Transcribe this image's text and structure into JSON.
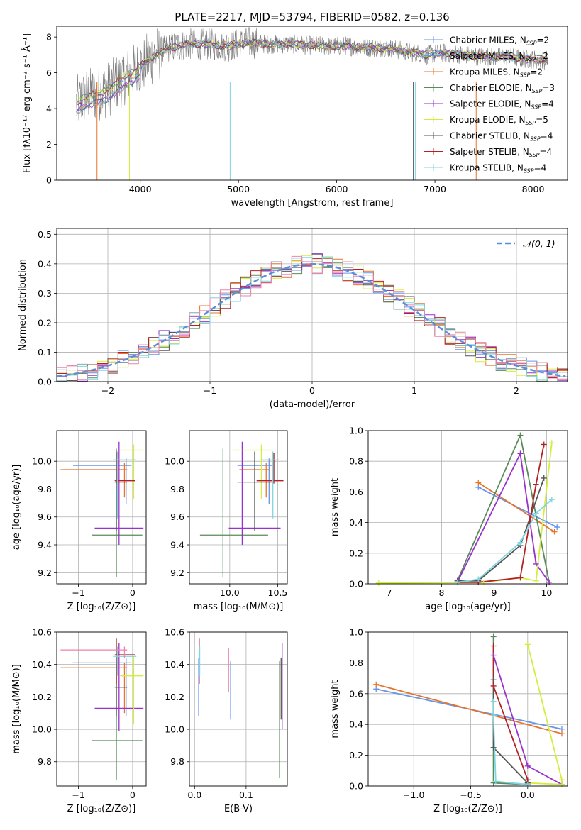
{
  "figure": {
    "title": "PLATE=2217, MJD=53794, FIBERID=0582, z=0.136",
    "colors": {
      "Chabrier MILES": "#6495ed",
      "Salpeter MILES": "#6495ed",
      "Kroupa MILES": "#e8742b",
      "Chabrier ELODIE": "#5a8a5a",
      "Salpeter ELODIE": "#9932cc",
      "Kroupa ELODIE": "#d4ed3c",
      "Chabrier STELIB": "#555555",
      "Salpeter STELIB": "#b22222",
      "Kroupa STELIB": "#7fd6e0",
      "Pink": "#ee82ab"
    }
  },
  "chart_data": [
    {
      "id": "spectrum",
      "type": "line",
      "xlabel": "wavelength [Angstrom, rest frame]",
      "ylabel": "Flux [fλ10⁻¹⁷ erg cm⁻² s⁻¹ Å⁻¹]",
      "xlim": [
        3150,
        8350
      ],
      "ylim": [
        0,
        8.6
      ],
      "xticks": [
        4000,
        5000,
        6000,
        7000,
        8000
      ],
      "yticks": [
        0,
        2,
        4,
        6,
        8
      ],
      "grid": false,
      "legend_position": "top-right",
      "legend": [
        {
          "label": "Chabrier MILES, N",
          "sub": "SSP",
          "val": "=2",
          "color": "#6495ed"
        },
        {
          "label": "Salpeter MILES, N",
          "sub": "SSP",
          "val": "=2",
          "color": "#6495ed"
        },
        {
          "label": "Kroupa MILES, N",
          "sub": "SSP",
          "val": "=2",
          "color": "#e8742b"
        },
        {
          "label": "Chabrier ELODIE, N",
          "sub": "SSP",
          "val": "=3",
          "color": "#5a8a5a"
        },
        {
          "label": "Salpeter ELODIE, N",
          "sub": "SSP",
          "val": "=4",
          "color": "#9932cc"
        },
        {
          "label": "Kroupa ELODIE, N",
          "sub": "SSP",
          "val": "=5",
          "color": "#d4ed3c"
        },
        {
          "label": "Chabrier STELIB, N",
          "sub": "SSP",
          "val": "=4",
          "color": "#555555"
        },
        {
          "label": "Salpeter STELIB, N",
          "sub": "SSP",
          "val": "=4",
          "color": "#b22222"
        },
        {
          "label": "Kroupa STELIB, N",
          "sub": "SSP",
          "val": "=4",
          "color": "#7fd6e0"
        }
      ],
      "continuum": {
        "x": [
          3350,
          3450,
          3550,
          3650,
          3750,
          3850,
          3950,
          4050,
          4150,
          4300,
          4500,
          4700,
          4900,
          5100,
          5300,
          5500,
          5700,
          5900,
          6100,
          6300,
          6500,
          6700,
          6900,
          7100,
          7300,
          7500,
          7700,
          7900,
          8100
        ],
        "y": [
          4.3,
          4.7,
          4.8,
          5.0,
          5.4,
          5.8,
          6.1,
          6.6,
          7.0,
          7.4,
          7.6,
          7.6,
          7.5,
          7.7,
          7.6,
          7.6,
          7.55,
          7.5,
          7.5,
          7.4,
          7.4,
          7.2,
          7.0,
          7.1,
          7.0,
          6.9,
          6.9,
          6.8,
          6.7
        ]
      }
    },
    {
      "id": "residuals",
      "type": "bar",
      "xlabel": "(data-model)/error",
      "ylabel": "Normed distribution",
      "xlim": [
        -2.5,
        2.5
      ],
      "ylim": [
        0,
        0.52
      ],
      "xticks": [
        -2,
        -1,
        0,
        1,
        2
      ],
      "xticklabels": [
        "−2",
        "−1",
        "0",
        "1",
        "2"
      ],
      "yticks": [
        0.0,
        0.1,
        0.2,
        0.3,
        0.4,
        0.5
      ],
      "yticklabels": [
        "0.0",
        "0.1",
        "0.2",
        "0.3",
        "0.4",
        "0.5"
      ],
      "grid": true,
      "legend_position": "top-right",
      "legend": [
        {
          "label": "𝒩(0, 1)",
          "color": "#5a8fd8",
          "style": "dashed"
        }
      ],
      "gaussian": {
        "mu": 0,
        "sigma": 1,
        "name": "𝒩(0, 1)"
      }
    },
    {
      "id": "age_Z",
      "type": "scatter",
      "xlabel": "Z [log₁₀(Z/Z⊙)]",
      "ylabel": "age  [log₁₀(age/yr)]",
      "xlim": [
        -1.4,
        0.25
      ],
      "ylim": [
        9.12,
        10.22
      ],
      "xticks": [
        -1,
        0
      ],
      "xticklabels": [
        "−1",
        "0"
      ],
      "yticks": [
        9.2,
        9.4,
        9.6,
        9.8,
        10.0
      ],
      "yticklabels": [
        "9.2",
        "9.4",
        "9.6",
        "9.8",
        "10.0"
      ],
      "grid": true,
      "points": [
        {
          "x": -0.12,
          "xerr": [
            0.98,
            0.1
          ],
          "y": 9.97,
          "yerr": [
            0.28,
            0.05
          ],
          "color": "#6495ed"
        },
        {
          "x": -0.15,
          "xerr": [
            1.18,
            0.05
          ],
          "y": 9.94,
          "yerr": [
            0.2,
            0.05
          ],
          "color": "#e8742b"
        },
        {
          "x": -0.3,
          "xerr": [
            0.45,
            0.48
          ],
          "y": 9.47,
          "yerr": [
            0.3,
            0.62
          ],
          "color": "#5a8a5a"
        },
        {
          "x": -0.25,
          "xerr": [
            0.45,
            0.45
          ],
          "y": 9.52,
          "yerr": [
            0.12,
            0.62
          ],
          "color": "#9932cc"
        },
        {
          "x": 0.02,
          "xerr": [
            0.25,
            0.18
          ],
          "y": 10.08,
          "yerr": [
            0.35,
            0.04
          ],
          "color": "#d4ed3c"
        },
        {
          "x": -0.3,
          "xerr": [
            0.03,
            0.2
          ],
          "y": 9.85,
          "yerr": [
            0.35,
            0.22
          ],
          "color": "#555555"
        },
        {
          "x": -0.3,
          "xerr": [
            0.03,
            0.35
          ],
          "y": 9.86,
          "yerr": [
            0.02,
            0.2
          ],
          "color": "#b22222"
        },
        {
          "x": -0.28,
          "xerr": [
            0.08,
            0.35
          ],
          "y": 10.01,
          "yerr": [
            0.42,
            0.06
          ],
          "color": "#7fd6e0"
        }
      ]
    },
    {
      "id": "age_mass",
      "type": "scatter",
      "xlabel": "mass [log₁₀(M/M⊙)]",
      "xlim": [
        9.58,
        10.6
      ],
      "ylim": [
        9.12,
        10.22
      ],
      "xticks": [
        10.0,
        10.5
      ],
      "xticklabels": [
        "10.0",
        "10.5"
      ],
      "yticks": [
        9.2,
        9.4,
        9.6,
        9.8,
        10.0
      ],
      "yticklabels": [
        "9.2",
        "9.4",
        "9.6",
        "9.8",
        "10.0"
      ],
      "grid": true,
      "points": [
        {
          "x": 10.41,
          "xerr": [
            0.33,
            0.03
          ],
          "y": 9.97,
          "yerr": [
            0.28,
            0.05
          ],
          "color": "#6495ed"
        },
        {
          "x": 10.38,
          "xerr": [
            0.28,
            0.03
          ],
          "y": 9.94,
          "yerr": [
            0.2,
            0.05
          ],
          "color": "#e8742b"
        },
        {
          "x": 9.93,
          "xerr": [
            0.24,
            0.47
          ],
          "y": 9.47,
          "yerr": [
            0.3,
            0.62
          ],
          "color": "#5a8a5a"
        },
        {
          "x": 10.13,
          "xerr": [
            0.14,
            0.4
          ],
          "y": 9.52,
          "yerr": [
            0.12,
            0.62
          ],
          "color": "#9932cc"
        },
        {
          "x": 10.33,
          "xerr": [
            0.3,
            0.12
          ],
          "y": 10.08,
          "yerr": [
            0.35,
            0.04
          ],
          "color": "#d4ed3c"
        },
        {
          "x": 10.26,
          "xerr": [
            0.18,
            0.18
          ],
          "y": 9.85,
          "yerr": [
            0.35,
            0.22
          ],
          "color": "#555555"
        },
        {
          "x": 10.46,
          "xerr": [
            0.18,
            0.1
          ],
          "y": 9.86,
          "yerr": [
            0.02,
            0.2
          ],
          "color": "#b22222"
        },
        {
          "x": 10.45,
          "xerr": [
            0.12,
            0.06
          ],
          "y": 10.01,
          "yerr": [
            0.42,
            0.06
          ],
          "color": "#7fd6e0"
        }
      ]
    },
    {
      "id": "mw_age",
      "type": "line",
      "xlabel": "age  [log₁₀(age/yr)]",
      "ylabel": "mass weight",
      "xlim": [
        6.6,
        10.4
      ],
      "ylim": [
        0,
        1
      ],
      "xticks": [
        7,
        8,
        9,
        10
      ],
      "yticks": [
        0,
        0.2,
        0.4,
        0.6,
        0.8,
        1.0
      ],
      "yticklabels": [
        "0.0",
        "0.2",
        "0.4",
        "0.6",
        "0.8",
        "1.0"
      ],
      "grid": true,
      "series": [
        {
          "color": "#6495ed",
          "x": [
            8.7,
            10.2
          ],
          "y": [
            0.63,
            0.37
          ]
        },
        {
          "color": "#e8742b",
          "x": [
            8.7,
            10.15
          ],
          "y": [
            0.66,
            0.34
          ]
        },
        {
          "color": "#5a8a5a",
          "x": [
            8.3,
            9.5,
            10.05
          ],
          "y": [
            0.02,
            0.97,
            0.01
          ]
        },
        {
          "color": "#9932cc",
          "x": [
            8.3,
            9.5,
            9.8,
            10.05
          ],
          "y": [
            0.01,
            0.85,
            0.13,
            0.01
          ]
        },
        {
          "color": "#d4ed3c",
          "x": [
            6.8,
            8.8,
            9.5,
            9.8,
            10.1
          ],
          "y": [
            0.005,
            0.01,
            0.04,
            0.02,
            0.92
          ]
        },
        {
          "color": "#555555",
          "x": [
            8.3,
            8.7,
            9.5,
            9.95
          ],
          "y": [
            0.02,
            0.02,
            0.25,
            0.69
          ]
        },
        {
          "color": "#b22222",
          "x": [
            8.3,
            8.7,
            9.5,
            9.8,
            9.95
          ],
          "y": [
            0.01,
            0.01,
            0.04,
            0.65,
            0.91
          ]
        },
        {
          "color": "#7fd6e0",
          "x": [
            8.3,
            8.7,
            9.5,
            9.8,
            10.1
          ],
          "y": [
            0.01,
            0.03,
            0.27,
            0.46,
            0.55
          ]
        }
      ]
    },
    {
      "id": "mass_Z",
      "type": "scatter",
      "xlabel": "Z [log₁₀(Z/Z⊙)]",
      "ylabel": "mass [log₁₀(M/M⊙)]",
      "xlim": [
        -1.4,
        0.25
      ],
      "ylim": [
        9.65,
        10.6
      ],
      "xticks": [
        -1,
        0
      ],
      "xticklabels": [
        "−1",
        "0"
      ],
      "yticks": [
        9.8,
        10.0,
        10.2,
        10.4,
        10.6
      ],
      "yticklabels": [
        "9.8",
        "10.0",
        "10.2",
        "10.4",
        "10.6"
      ],
      "grid": true,
      "points": [
        {
          "x": -0.12,
          "xerr": [
            0.98,
            0.1
          ],
          "y": 10.41,
          "yerr": [
            0.33,
            0.03
          ],
          "color": "#6495ed"
        },
        {
          "x": -0.15,
          "xerr": [
            1.18,
            0.05
          ],
          "y": 10.38,
          "yerr": [
            0.28,
            0.03
          ],
          "color": "#e8742b"
        },
        {
          "x": -0.3,
          "xerr": [
            0.45,
            0.48
          ],
          "y": 9.93,
          "yerr": [
            0.24,
            0.47
          ],
          "color": "#5a8a5a"
        },
        {
          "x": -0.25,
          "xerr": [
            0.45,
            0.45
          ],
          "y": 10.13,
          "yerr": [
            0.14,
            0.4
          ],
          "color": "#9932cc"
        },
        {
          "x": 0.02,
          "xerr": [
            0.25,
            0.18
          ],
          "y": 10.33,
          "yerr": [
            0.3,
            0.12
          ],
          "color": "#d4ed3c"
        },
        {
          "x": -0.3,
          "xerr": [
            0.03,
            0.2
          ],
          "y": 10.26,
          "yerr": [
            0.18,
            0.18
          ],
          "color": "#555555"
        },
        {
          "x": -0.3,
          "xerr": [
            0.03,
            0.35
          ],
          "y": 10.46,
          "yerr": [
            0.18,
            0.1
          ],
          "color": "#b22222"
        },
        {
          "x": -0.28,
          "xerr": [
            0.08,
            0.35
          ],
          "y": 10.45,
          "yerr": [
            0.12,
            0.06
          ],
          "color": "#7fd6e0"
        },
        {
          "x": -0.15,
          "xerr": [
            1.18,
            0.05
          ],
          "y": 10.49,
          "yerr": [
            0.05,
            0.02
          ],
          "color": "#ee82ab"
        }
      ]
    },
    {
      "id": "mass_ebv",
      "type": "scatter",
      "xlabel": "E(B-V)",
      "xlim": [
        -0.01,
        0.18
      ],
      "ylim": [
        9.65,
        10.6
      ],
      "xticks": [
        0.0,
        0.1
      ],
      "xticklabels": [
        "0.0",
        "0.1"
      ],
      "yticks": [
        9.8,
        10.0,
        10.2,
        10.4,
        10.6
      ],
      "yticklabels": [
        "9.8",
        "10.0",
        "10.2",
        "10.4",
        "10.6"
      ],
      "grid": true,
      "points": [
        {
          "x": 0.008,
          "y": 10.41,
          "yerr": [
            0.33,
            0.03
          ],
          "color": "#6495ed"
        },
        {
          "x": 0.009,
          "y": 10.46,
          "yerr": [
            0.18,
            0.1
          ],
          "color": "#b22222"
        },
        {
          "x": 0.01,
          "y": 10.45,
          "yerr": [
            0.12,
            0.06
          ],
          "color": "#7fd6e0"
        },
        {
          "x": 0.066,
          "y": 10.38,
          "yerr": [
            0.15,
            0.12
          ],
          "color": "#ee82ab"
        },
        {
          "x": 0.07,
          "y": 10.3,
          "yerr": [
            0.24,
            0.12
          ],
          "color": "#6495ed"
        },
        {
          "x": 0.165,
          "y": 10.1,
          "yerr": [
            0.4,
            0.32
          ],
          "color": "#5a8a5a"
        },
        {
          "x": 0.17,
          "y": 10.2,
          "yerr": [
            0.2,
            0.33
          ],
          "color": "#9932cc"
        },
        {
          "x": 0.168,
          "y": 10.26,
          "yerr": [
            0.2,
            0.18
          ],
          "color": "#555555"
        }
      ]
    },
    {
      "id": "mw_Z",
      "type": "line",
      "xlabel": "Z [log₁₀(Z/Z⊙)]",
      "ylabel": "mass weight",
      "xlim": [
        -1.4,
        0.35
      ],
      "ylim": [
        0,
        1
      ],
      "xticks": [
        -1.0,
        -0.5,
        0.0
      ],
      "xticklabels": [
        "−1.0",
        "−0.5",
        "0.0"
      ],
      "yticks": [
        0,
        0.2,
        0.4,
        0.6,
        0.8,
        1.0
      ],
      "yticklabels": [
        "0.0",
        "0.2",
        "0.4",
        "0.6",
        "0.8",
        "1.0"
      ],
      "grid": true,
      "series": [
        {
          "color": "#6495ed",
          "x": [
            -1.33,
            0.3
          ],
          "y": [
            0.63,
            0.37
          ]
        },
        {
          "color": "#e8742b",
          "x": [
            -1.33,
            0.3
          ],
          "y": [
            0.66,
            0.34
          ]
        },
        {
          "color": "#5a8a5a",
          "x": [
            -0.3,
            -0.3,
            0.0
          ],
          "y": [
            0.97,
            0.02,
            0.01
          ]
        },
        {
          "color": "#9932cc",
          "x": [
            -0.3,
            0.0,
            0.3
          ],
          "y": [
            0.85,
            0.13,
            0.01
          ]
        },
        {
          "color": "#d4ed3c",
          "x": [
            0.0,
            0.3,
            0.3,
            0.0
          ],
          "y": [
            0.92,
            0.04,
            0.01,
            0.02
          ]
        },
        {
          "color": "#555555",
          "x": [
            -0.3,
            -0.3,
            0.0,
            0.0
          ],
          "y": [
            0.69,
            0.25,
            0.02,
            0.02
          ]
        },
        {
          "color": "#b22222",
          "x": [
            -0.3,
            -0.3,
            0.0,
            0.0
          ],
          "y": [
            0.91,
            0.65,
            0.04,
            0.01
          ]
        },
        {
          "color": "#7fd6e0",
          "x": [
            -0.3,
            -0.3,
            -0.28,
            0.0
          ],
          "y": [
            0.55,
            0.46,
            0.03,
            0.01
          ]
        }
      ]
    }
  ]
}
